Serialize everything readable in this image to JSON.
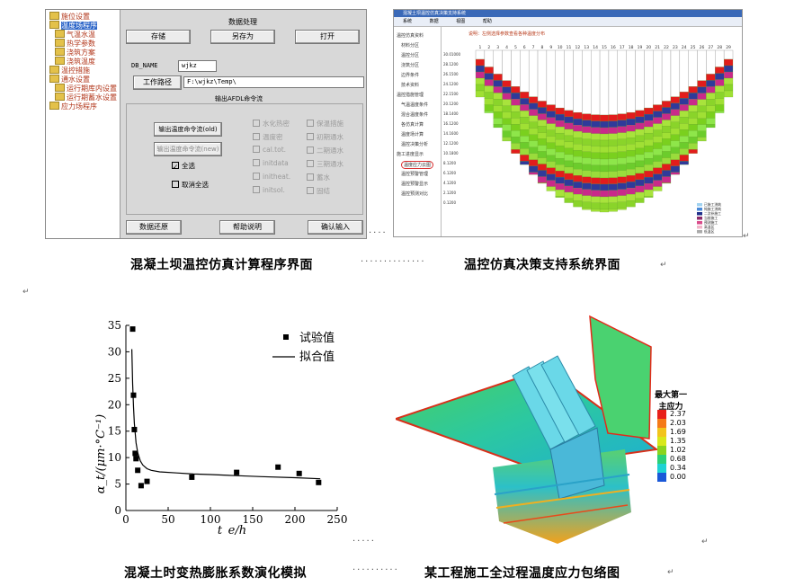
{
  "panel1": {
    "tree": [
      "施位设置",
      "温度场程序",
      "气温水温",
      "热学参数",
      "浇筑方案",
      "浇筑温度",
      "温控措施",
      "通水设置",
      "运行期库内设置",
      "运行期蓄水设置",
      "应力场程序"
    ],
    "form": {
      "header": "数据处理",
      "btn_save": "存储",
      "btn_saveas": "另存为",
      "btn_open": "打开",
      "db_name_label": "DB_NAME",
      "db_name_value": "wjkz",
      "workpath_btn": "工作路径",
      "workpath_value": "F:\\wjkz\\Temp\\",
      "group_title": "输出AFDL命令流",
      "btn_cmd_old": "输出温度命令流(old)",
      "btn_cmd_new": "输出温度命令流(new)",
      "select_all": "全选",
      "deselect_all": "取消全选",
      "checks_col1": [
        "水化热密",
        "温度密",
        "cal.tot.",
        "initdata",
        "initheat.",
        "initsol."
      ],
      "checks_col2": [
        "保温措施",
        "初期通水",
        "二期通水",
        "三期通水",
        "蓄水",
        "固结"
      ],
      "btn_restore": "数据还原",
      "btn_help": "帮助说明",
      "btn_confirm": "确认输入"
    }
  },
  "panel2": {
    "window_title": "混凝土坝温控仿真决策支持系统",
    "toolbar": [
      "系统",
      "数据",
      "视图",
      "帮助"
    ],
    "subtitle": "说明：左侧选择参数查看各种温度分布",
    "side_items": [
      "温控仿真资料",
      "材料分区",
      "温控分区",
      "浇筑分区",
      "边界条件",
      "技术资料",
      "温控措施管理",
      "气温温度条件",
      "混合温度条件",
      "各仿真计算",
      "温度场计算",
      "温控决策分析",
      "施工进度显示",
      "温度应力云图",
      "温控预警管理",
      "温控预警显示",
      "温控预测对比"
    ],
    "x_ticks": [
      "1",
      "2",
      "3",
      "4",
      "5",
      "6",
      "7",
      "8",
      "9",
      "10",
      "11",
      "12",
      "13",
      "14",
      "15",
      "16",
      "17",
      "18",
      "19",
      "20",
      "21",
      "22",
      "23",
      "24",
      "25",
      "26",
      "27",
      "28",
      "29"
    ],
    "y_ticks": [
      "30.01000",
      "28.1200",
      "26.1500",
      "24.1200",
      "22.1500",
      "20.1200",
      "18.1400",
      "16.1200",
      "14.1600",
      "12.1200",
      "10.1800",
      "8.1200",
      "6.1200",
      "4.1200",
      "2.1200",
      "0.1200"
    ],
    "legend": [
      "已施工浇筑",
      "纯施工浇筑",
      "二次补施工",
      "当前施工",
      "预测施工",
      "高温区",
      "低温区"
    ],
    "legend_colors": [
      "#a0d2f0",
      "#4a8ad8",
      "#1f2f8a",
      "#8b2a6a",
      "#d94a8a",
      "#f0b4c8",
      "#aaaaaa"
    ]
  },
  "panel3": {
    "legend_points": "试验值",
    "legend_line": "拟合值",
    "ylabel": "α_t/(μm·°C⁻¹)",
    "xlabel": "t_e/h"
  },
  "panel4": {
    "legend_title_1": "最大第一",
    "legend_title_2": "主应力",
    "legend_values": [
      "2.37",
      "2.03",
      "1.69",
      "1.35",
      "1.02",
      "0.68",
      "0.34",
      "0.00"
    ],
    "legend_colors": [
      "#e8201a",
      "#f57a18",
      "#f2c41c",
      "#d8e81a",
      "#8ad41e",
      "#2cd078",
      "#1fd2d4",
      "#1a58d8"
    ]
  },
  "captions": {
    "c1": "混凝土坝温控仿真计算程序界面",
    "c2": "温控仿真决策支持系统界面",
    "c3": "混凝土时变热膨胀系数演化模拟",
    "c4": "某工程施工全过程温度应力包络图"
  },
  "chart_data": {
    "type": "scatter",
    "xlabel": "t_e/h",
    "ylabel": "α_t/(μm·°C⁻¹)",
    "xlim": [
      0,
      250
    ],
    "ylim": [
      0,
      35
    ],
    "x_ticks": [
      0,
      50,
      100,
      150,
      200,
      250
    ],
    "y_ticks": [
      0,
      5,
      10,
      15,
      20,
      25,
      30,
      35
    ],
    "grid": false,
    "legend": "top-right",
    "series": [
      {
        "name": "试验值",
        "kind": "points",
        "x": [
          8,
          9,
          10,
          11,
          12,
          14,
          18,
          25,
          78,
          131,
          180,
          205,
          228
        ],
        "y": [
          34.3,
          21.8,
          15.3,
          10.8,
          9.8,
          7.6,
          4.7,
          5.5,
          6.3,
          7.2,
          8.2,
          7,
          5.3
        ]
      },
      {
        "name": "拟合值",
        "kind": "line",
        "x": [
          7,
          8,
          9,
          10,
          12,
          14,
          17,
          20,
          25,
          30,
          40,
          60,
          80,
          100,
          130,
          160,
          200,
          230
        ],
        "y": [
          30.5,
          24,
          19.5,
          16.5,
          12.8,
          10.9,
          9.4,
          8.6,
          7.9,
          7.6,
          7.3,
          7.1,
          6.9,
          6.8,
          6.6,
          6.4,
          6.2,
          6.0
        ]
      }
    ]
  }
}
